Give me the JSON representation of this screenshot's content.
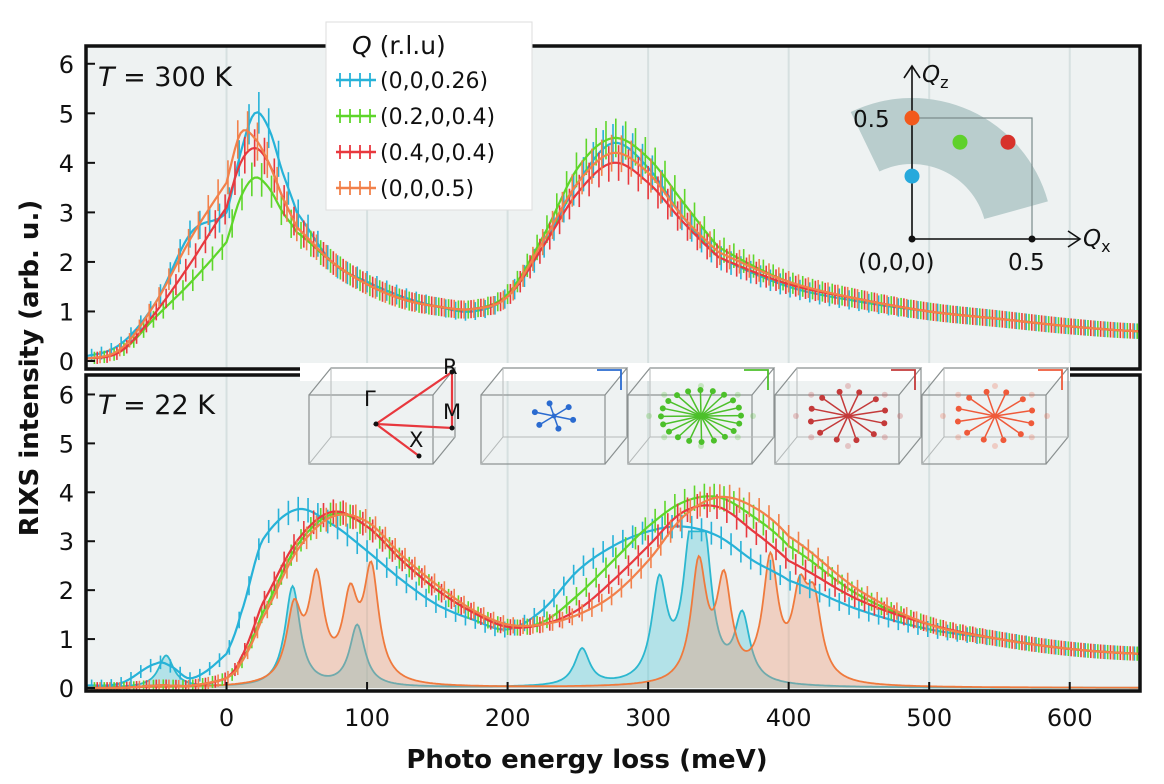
{
  "chart_data": [
    {
      "panel": "top",
      "type": "line",
      "title_var": "T",
      "title_rest": " = 300 K",
      "ylabel": "RIXS intensity (arb. u.)",
      "xlabel": "Photo energy loss (meV)",
      "xlim": [
        -100,
        650
      ],
      "ylim": [
        0,
        6.5
      ],
      "xticks": [
        0,
        100,
        200,
        300,
        400,
        500,
        600
      ],
      "yticks": [
        0,
        1,
        2,
        3,
        4,
        5,
        6
      ],
      "legend": {
        "title_var": "Q",
        "title_rest": " (r.l.u)",
        "placement": "top-left",
        "entries": [
          "(0,0,0.26)",
          "(0.2,0,0.4)",
          "(0.4,0,0.4)",
          "(0,0,0.5)"
        ]
      },
      "x": [
        -100,
        -75,
        -50,
        -25,
        0,
        10,
        20,
        30,
        40,
        50,
        75,
        100,
        125,
        150,
        175,
        200,
        225,
        250,
        275,
        300,
        325,
        350,
        400,
        450,
        500,
        550,
        600,
        650
      ],
      "series": [
        {
          "name": "(0,0,0.26)",
          "color": "#27b2d8",
          "values": [
            0.1,
            0.35,
            1.2,
            2.6,
            3.0,
            4.2,
            5.0,
            4.7,
            3.8,
            3.0,
            2.0,
            1.6,
            1.3,
            1.1,
            1.0,
            1.3,
            2.3,
            3.6,
            4.4,
            3.9,
            2.9,
            2.1,
            1.5,
            1.2,
            1.0,
            0.85,
            0.7,
            0.6
          ]
        },
        {
          "name": "(0.2,0,0.4)",
          "color": "#5ed62a",
          "values": [
            0.05,
            0.2,
            0.9,
            1.6,
            2.4,
            3.3,
            3.7,
            3.5,
            3.0,
            2.6,
            2.0,
            1.55,
            1.25,
            1.1,
            1.05,
            1.35,
            2.5,
            3.9,
            4.5,
            4.1,
            3.2,
            2.3,
            1.6,
            1.25,
            1.0,
            0.85,
            0.7,
            0.6
          ]
        },
        {
          "name": "(0.4,0,0.4)",
          "color": "#e8383e",
          "values": [
            0.05,
            0.2,
            1.0,
            2.0,
            3.1,
            4.0,
            4.3,
            4.0,
            3.3,
            2.7,
            2.0,
            1.55,
            1.25,
            1.1,
            1.05,
            1.3,
            2.3,
            3.4,
            4.0,
            3.6,
            2.8,
            2.1,
            1.55,
            1.25,
            1.0,
            0.85,
            0.7,
            0.6
          ]
        },
        {
          "name": "(0,0,0.5)",
          "color": "#f2814b",
          "values": [
            0.05,
            0.25,
            1.2,
            2.5,
            3.6,
            4.6,
            4.5,
            4.0,
            3.3,
            2.7,
            2.0,
            1.55,
            1.25,
            1.1,
            1.05,
            1.3,
            2.4,
            3.6,
            4.2,
            3.8,
            2.9,
            2.2,
            1.6,
            1.25,
            1.0,
            0.85,
            0.7,
            0.6
          ]
        }
      ],
      "inset": {
        "xlabel_var": "Q",
        "xlabel_sub": "x",
        "ylabel_var": "Q",
        "ylabel_sub": "z",
        "origin_label": "(0,0,0)",
        "x_tick_label": "0.5",
        "y_tick_label": "0.5",
        "points": [
          {
            "qx": 0,
            "qz": 0.26,
            "color": "#27a9dc"
          },
          {
            "qx": 0.2,
            "qz": 0.4,
            "color": "#5fd12b"
          },
          {
            "qx": 0.4,
            "qz": 0.4,
            "color": "#d7322b"
          },
          {
            "qx": 0,
            "qz": 0.5,
            "color": "#f2591c"
          }
        ]
      }
    },
    {
      "panel": "bottom",
      "type": "line",
      "title_var": "T",
      "title_rest": " = 22 K",
      "ylabel": "RIXS intensity (arb. u.)",
      "xlabel": "Photo energy loss (meV)",
      "xlim": [
        -100,
        650
      ],
      "ylim": [
        0,
        6.5
      ],
      "xticks": [
        0,
        100,
        200,
        300,
        400,
        500,
        600
      ],
      "yticks": [
        0,
        1,
        2,
        3,
        4,
        5,
        6
      ],
      "x": [
        -100,
        -75,
        -50,
        -40,
        -25,
        0,
        10,
        25,
        50,
        75,
        100,
        125,
        150,
        175,
        200,
        225,
        250,
        275,
        300,
        325,
        350,
        375,
        400,
        450,
        500,
        550,
        600,
        650
      ],
      "series": [
        {
          "name": "(0,0,0.26)",
          "color": "#27b2d8",
          "values": [
            0.05,
            0.1,
            0.5,
            0.45,
            0.2,
            0.7,
            1.5,
            3.0,
            3.65,
            3.35,
            2.8,
            2.2,
            1.7,
            1.4,
            1.2,
            1.6,
            2.4,
            2.9,
            3.2,
            3.3,
            3.1,
            2.6,
            2.2,
            1.6,
            1.2,
            1.0,
            0.8,
            0.7
          ]
        },
        {
          "name": "(0.2,0,0.4)",
          "color": "#5ed62a",
          "values": [
            0.0,
            0.0,
            0.05,
            0.05,
            0.05,
            0.2,
            0.5,
            1.5,
            2.9,
            3.55,
            3.3,
            2.6,
            2.0,
            1.55,
            1.25,
            1.35,
            1.9,
            2.6,
            3.3,
            3.8,
            3.9,
            3.5,
            2.9,
            1.9,
            1.3,
            1.0,
            0.8,
            0.7
          ]
        },
        {
          "name": "(0.4,0,0.4)",
          "color": "#e8383e",
          "values": [
            0.0,
            0.0,
            0.05,
            0.05,
            0.05,
            0.2,
            0.6,
            1.7,
            3.0,
            3.6,
            3.3,
            2.6,
            2.0,
            1.55,
            1.25,
            1.3,
            1.6,
            2.2,
            2.9,
            3.6,
            3.7,
            3.2,
            2.6,
            1.8,
            1.3,
            1.0,
            0.8,
            0.7
          ]
        },
        {
          "name": "(0,0,0.5)",
          "color": "#f2814b",
          "values": [
            0.0,
            0.0,
            0.05,
            0.05,
            0.05,
            0.2,
            0.5,
            1.4,
            2.8,
            3.5,
            3.4,
            2.7,
            2.1,
            1.6,
            1.3,
            1.3,
            1.5,
            1.9,
            2.6,
            3.5,
            3.9,
            3.7,
            3.1,
            2.0,
            1.3,
            1.0,
            0.8,
            0.7
          ]
        }
      ],
      "calc_blue_peaks": [
        {
          "x": -43,
          "y": 0.65
        },
        {
          "x": 47,
          "y": 2.05
        },
        {
          "x": 93,
          "y": 1.25
        },
        {
          "x": 253,
          "y": 0.75
        },
        {
          "x": 308,
          "y": 2.0
        },
        {
          "x": 330,
          "y": 2.4
        },
        {
          "x": 340,
          "y": 2.5
        },
        {
          "x": 367,
          "y": 1.35
        }
      ],
      "calc_orange_peaks": [
        {
          "x": 48,
          "y": 1.45
        },
        {
          "x": 64,
          "y": 2.05
        },
        {
          "x": 88,
          "y": 1.6
        },
        {
          "x": 103,
          "y": 2.25
        },
        {
          "x": 336,
          "y": 2.4
        },
        {
          "x": 354,
          "y": 2.0
        },
        {
          "x": 387,
          "y": 2.45
        },
        {
          "x": 408,
          "y": 1.6
        },
        {
          "x": 418,
          "y": 1.5
        }
      ],
      "bz_labels": {
        "gamma": "Γ",
        "x": "X",
        "m": "M",
        "r": "R"
      }
    }
  ],
  "colors": {
    "blue": "#27b2d8",
    "green": "#5ed62a",
    "red": "#e8383e",
    "orange": "#f2814b",
    "panel_bg": "#eef2f2",
    "wedge": "#b9cdcd"
  }
}
